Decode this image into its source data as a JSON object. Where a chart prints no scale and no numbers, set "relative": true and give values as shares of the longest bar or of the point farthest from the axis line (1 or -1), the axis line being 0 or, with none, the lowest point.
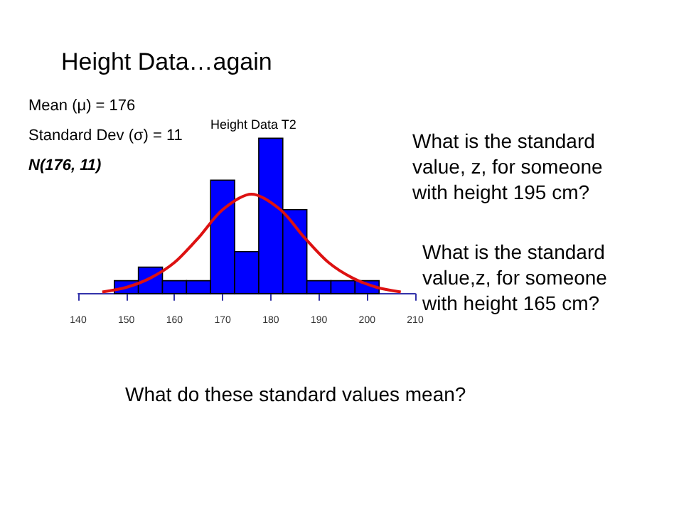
{
  "chart_data": {
    "type": "histogram",
    "title": "Height Data…again",
    "subtitle": "Height Data T2",
    "annotations": [
      "Mean (μ) = 176",
      "Standard Dev (σ) = 11",
      "N(176, 11)",
      "What is the standard value, z, for someone with height 195 cm?",
      "What is the standard value,z, for someone with height 165 cm?",
      "What do these standard values mean?"
    ],
    "relative": true,
    "xlim": [
      140,
      210
    ],
    "xticks": [
      140,
      150,
      160,
      170,
      180,
      190,
      200,
      210
    ],
    "grid": false,
    "marker": "none",
    "bins": [
      147.5,
      152.5,
      157.5,
      162.5,
      167.5,
      172.5,
      177.5,
      182.5,
      187.5,
      192.5,
      197.5,
      202.5
    ],
    "series": [
      {
        "color": "#0000ff",
        "values": [
          0.083,
          0.17,
          0.083,
          0.083,
          0.73,
          0.27,
          1,
          0.54,
          0.083,
          0.083,
          0.083
        ]
      },
      {
        "type": "line",
        "color": "#dd1111",
        "x": [
          145,
          150,
          155,
          160,
          165,
          170,
          176,
          182,
          187,
          192,
          197,
          202,
          207
        ],
        "values": [
          0.01,
          0.04,
          0.1,
          0.2,
          0.36,
          0.54,
          0.64,
          0.54,
          0.36,
          0.2,
          0.1,
          0.04,
          0.01
        ]
      }
    ]
  }
}
